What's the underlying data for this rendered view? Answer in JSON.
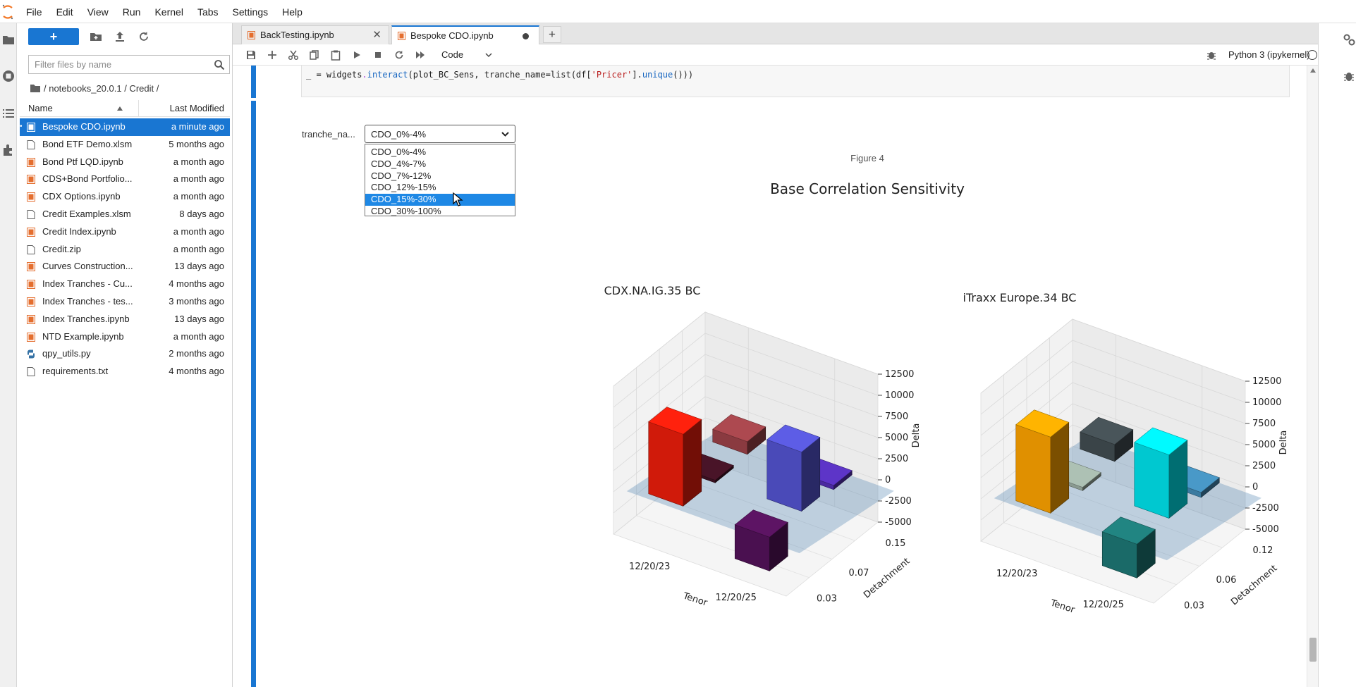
{
  "menu": [
    "File",
    "Edit",
    "View",
    "Run",
    "Kernel",
    "Tabs",
    "Settings",
    "Help"
  ],
  "activity_icons": [
    "folder-icon",
    "running-icon",
    "toc-icon",
    "extension-icon"
  ],
  "right_icons": [
    "property-inspector-icon",
    "debugger-icon"
  ],
  "filebrowser": {
    "new_label": "+",
    "filter_placeholder": "Filter files by name",
    "breadcrumb": "/ notebooks_20.0.1 / Credit /",
    "col_name": "Name",
    "col_modified": "Last Modified",
    "files": [
      {
        "name": "Bespoke CDO.ipynb",
        "modified": "a minute ago",
        "icon": "notebook-icon",
        "selected": true,
        "running": true
      },
      {
        "name": "Bond ETF Demo.xlsm",
        "modified": "5 months ago",
        "icon": "file-icon"
      },
      {
        "name": "Bond Ptf LQD.ipynb",
        "modified": "a month ago",
        "icon": "notebook-icon"
      },
      {
        "name": "CDS+Bond Portfolio...",
        "modified": "a month ago",
        "icon": "notebook-icon"
      },
      {
        "name": "CDX Options.ipynb",
        "modified": "a month ago",
        "icon": "notebook-icon"
      },
      {
        "name": "Credit Examples.xlsm",
        "modified": "8 days ago",
        "icon": "file-icon"
      },
      {
        "name": "Credit Index.ipynb",
        "modified": "a month ago",
        "icon": "notebook-icon"
      },
      {
        "name": "Credit.zip",
        "modified": "a month ago",
        "icon": "file-icon"
      },
      {
        "name": "Curves Construction...",
        "modified": "13 days ago",
        "icon": "notebook-icon"
      },
      {
        "name": "Index Tranches - Cu...",
        "modified": "4 months ago",
        "icon": "notebook-icon"
      },
      {
        "name": "Index Tranches - tes...",
        "modified": "3 months ago",
        "icon": "notebook-icon"
      },
      {
        "name": "Index Tranches.ipynb",
        "modified": "13 days ago",
        "icon": "notebook-icon"
      },
      {
        "name": "NTD Example.ipynb",
        "modified": "a month ago",
        "icon": "notebook-icon"
      },
      {
        "name": "qpy_utils.py",
        "modified": "2 months ago",
        "icon": "python-icon"
      },
      {
        "name": "requirements.txt",
        "modified": "4 months ago",
        "icon": "file-icon"
      }
    ]
  },
  "tabs": [
    {
      "label": "BackTesting.ipynb",
      "active": false
    },
    {
      "label": "Bespoke CDO.ipynb",
      "active": true
    }
  ],
  "new_tab_label": "+",
  "toolbar": {
    "cell_type": "Code",
    "kernel": "Python 3 (ipykernel)"
  },
  "code": {
    "lhs": "_ = ",
    "obj": "widgets",
    "dot": ".",
    "fn": "interact",
    "args1": "(plot_BC_Sens, tranche_name=list(df[",
    "str": "'Pricer'",
    "args2": "].",
    "fn2": "unique",
    "args3": "()))"
  },
  "widget": {
    "label": "tranche_na...",
    "value": "CDO_0%-4%",
    "options": [
      "CDO_0%-4%",
      "CDO_4%-7%",
      "CDO_7%-12%",
      "CDO_12%-15%",
      "CDO_15%-30%",
      "CDO_30%-100%"
    ],
    "highlighted": "CDO_15%-30%"
  },
  "figure": {
    "label": "Figure 4",
    "suptitle": "Base Correlation Sensitivity"
  },
  "chart_data": [
    {
      "type": "bar3d",
      "title": "CDX.NA.IG.35 BC",
      "xlabel": "Tenor",
      "ylabel": "Detachment",
      "zlabel": "Delta",
      "x_ticks": [
        "12/20/23",
        "12/20/25"
      ],
      "y_ticks": [
        "0.03",
        "0.07",
        "0.15"
      ],
      "z_ticks": [
        -5000,
        -2500,
        0,
        2500,
        5000,
        7500,
        10000,
        12500
      ],
      "zlim": [
        -5000,
        12500
      ],
      "bars": [
        {
          "tenor": "12/20/23",
          "detachment": 0.03,
          "delta": 8500,
          "color": "#d01a0a"
        },
        {
          "tenor": "12/20/23",
          "detachment": 0.07,
          "delta": -300,
          "color": "#3a1020"
        },
        {
          "tenor": "12/20/23",
          "detachment": 0.15,
          "delta": 1500,
          "color": "#8a3a40"
        },
        {
          "tenor": "12/20/25",
          "detachment": 0.03,
          "delta": -4000,
          "color": "#4a1050"
        },
        {
          "tenor": "12/20/25",
          "detachment": 0.07,
          "delta": 7000,
          "color": "#4a4ab8"
        },
        {
          "tenor": "12/20/25",
          "detachment": 0.15,
          "delta": -500,
          "color": "#4a2aa0"
        }
      ]
    },
    {
      "type": "bar3d",
      "title": "iTraxx Europe.34 BC",
      "xlabel": "Tenor",
      "ylabel": "Detachment",
      "zlabel": "Delta",
      "x_ticks": [
        "12/20/23",
        "12/20/25"
      ],
      "y_ticks": [
        "0.03",
        "0.06",
        "0.12"
      ],
      "z_ticks": [
        -5000,
        -2500,
        0,
        2500,
        5000,
        7500,
        10000,
        12500
      ],
      "zlim": [
        -5000,
        12500
      ],
      "bars": [
        {
          "tenor": "12/20/23",
          "detachment": 0.03,
          "delta": 9000,
          "color": "#e09000"
        },
        {
          "tenor": "12/20/23",
          "detachment": 0.06,
          "delta": -400,
          "color": "#8a9a90"
        },
        {
          "tenor": "12/20/23",
          "detachment": 0.12,
          "delta": 2000,
          "color": "#3a4448"
        },
        {
          "tenor": "12/20/25",
          "detachment": 0.03,
          "delta": -4000,
          "color": "#1a6a68"
        },
        {
          "tenor": "12/20/25",
          "detachment": 0.06,
          "delta": 7500,
          "color": "#00c8d0"
        },
        {
          "tenor": "12/20/25",
          "detachment": 0.12,
          "delta": -600,
          "color": "#3a7aa0"
        }
      ]
    }
  ]
}
